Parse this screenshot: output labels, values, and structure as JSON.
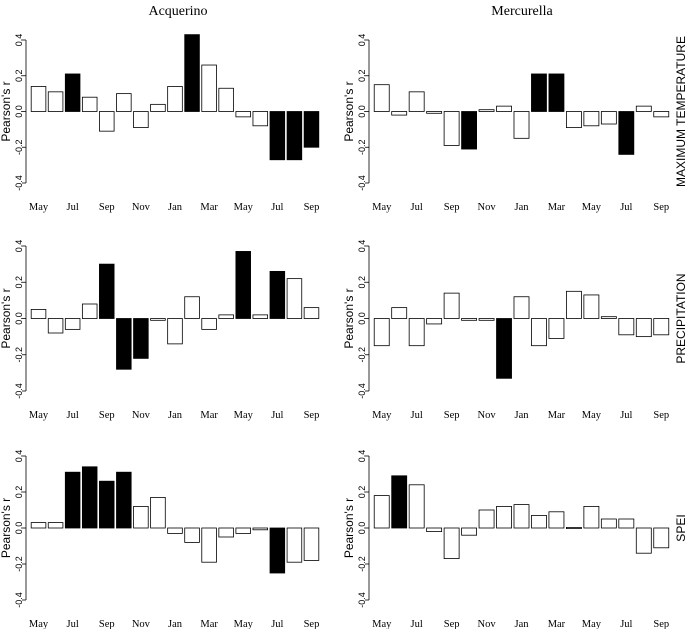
{
  "figure": {
    "columns": [
      "Acquerino",
      "Mercurella"
    ],
    "rows": [
      "MAXIMUM TEMPERATURE",
      "PRECIPITATION",
      "SPEI"
    ]
  },
  "chart_data": [
    {
      "type": "bar",
      "title": "Acquerino",
      "row": "MAXIMUM TEMPERATURE",
      "ylabel": "Pearson's r",
      "categories": [
        "May",
        "Jun",
        "Jul",
        "Aug",
        "Sep",
        "Oct",
        "Nov",
        "Dec",
        "Jan",
        "Feb",
        "Mar",
        "Apr",
        "May",
        "Jun",
        "Jul",
        "Aug",
        "Sep"
      ],
      "xtick_labels": [
        "May",
        "Jul",
        "Sep",
        "Nov",
        "Jan",
        "Mar",
        "May",
        "Jul",
        "Sep"
      ],
      "values": [
        0.14,
        0.11,
        0.21,
        0.08,
        -0.11,
        0.1,
        -0.09,
        0.04,
        0.14,
        0.43,
        0.26,
        0.13,
        -0.03,
        -0.08,
        -0.27,
        -0.27,
        -0.2
      ],
      "significant": [
        false,
        false,
        true,
        false,
        false,
        false,
        false,
        false,
        false,
        true,
        false,
        false,
        false,
        false,
        true,
        true,
        true
      ],
      "yticks": [
        "-0.4",
        "-0.2",
        "0.0",
        "0.2",
        "0.4"
      ],
      "ylim": [
        -0.4,
        0.4
      ]
    },
    {
      "type": "bar",
      "title": "Mercurella",
      "row": "MAXIMUM TEMPERATURE",
      "ylabel": "Pearson's r",
      "categories": [
        "May",
        "Jun",
        "Jul",
        "Aug",
        "Sep",
        "Oct",
        "Nov",
        "Dec",
        "Jan",
        "Feb",
        "Mar",
        "Apr",
        "May",
        "Jun",
        "Jul",
        "Aug",
        "Sep"
      ],
      "xtick_labels": [
        "May",
        "Jul",
        "Sep",
        "Nov",
        "Jan",
        "Mar",
        "May",
        "Jul",
        "Sep"
      ],
      "values": [
        0.15,
        -0.02,
        0.11,
        -0.01,
        -0.19,
        -0.21,
        0.01,
        0.03,
        -0.15,
        0.21,
        0.21,
        -0.09,
        -0.08,
        -0.07,
        -0.24,
        0.03,
        -0.03
      ],
      "significant": [
        false,
        false,
        false,
        false,
        false,
        true,
        false,
        false,
        false,
        true,
        true,
        false,
        false,
        false,
        true,
        false,
        false
      ],
      "yticks": [
        "-0.4",
        "-0.2",
        "0.0",
        "0.2",
        "0.4"
      ],
      "ylim": [
        -0.4,
        0.4
      ]
    },
    {
      "type": "bar",
      "title": "Acquerino",
      "row": "PRECIPITATION",
      "ylabel": "Pearson's r",
      "categories": [
        "May",
        "Jun",
        "Jul",
        "Aug",
        "Sep",
        "Oct",
        "Nov",
        "Dec",
        "Jan",
        "Feb",
        "Mar",
        "Apr",
        "May",
        "Jun",
        "Jul",
        "Aug",
        "Sep"
      ],
      "xtick_labels": [
        "May",
        "Jul",
        "Sep",
        "Nov",
        "Jan",
        "Mar",
        "May",
        "Jul",
        "Sep"
      ],
      "values": [
        0.05,
        -0.08,
        -0.06,
        0.08,
        0.3,
        -0.28,
        -0.22,
        -0.01,
        -0.14,
        0.12,
        -0.06,
        0.02,
        0.37,
        0.02,
        0.26,
        0.22,
        0.06
      ],
      "significant": [
        false,
        false,
        false,
        false,
        true,
        true,
        true,
        false,
        false,
        false,
        false,
        false,
        true,
        false,
        true,
        false,
        false
      ],
      "yticks": [
        "-0.4",
        "-0.2",
        "0.0",
        "0.2",
        "0.4"
      ],
      "ylim": [
        -0.4,
        0.4
      ]
    },
    {
      "type": "bar",
      "title": "Mercurella",
      "row": "PRECIPITATION",
      "ylabel": "Pearson's r",
      "categories": [
        "May",
        "Jun",
        "Jul",
        "Aug",
        "Sep",
        "Oct",
        "Nov",
        "Dec",
        "Jan",
        "Feb",
        "Mar",
        "Apr",
        "May",
        "Jun",
        "Jul",
        "Aug",
        "Sep"
      ],
      "xtick_labels": [
        "May",
        "Jul",
        "Sep",
        "Nov",
        "Jan",
        "Mar",
        "May",
        "Jul",
        "Sep"
      ],
      "values": [
        -0.15,
        0.06,
        -0.15,
        -0.03,
        0.14,
        -0.01,
        -0.01,
        -0.33,
        0.12,
        -0.15,
        -0.11,
        0.15,
        0.13,
        0.01,
        -0.09,
        -0.1,
        -0.09
      ],
      "significant": [
        false,
        false,
        false,
        false,
        false,
        false,
        false,
        true,
        false,
        false,
        false,
        false,
        false,
        false,
        false,
        false,
        false
      ],
      "yticks": [
        "-0.4",
        "-0.2",
        "0.0",
        "0.2",
        "0.4"
      ],
      "ylim": [
        -0.4,
        0.4
      ]
    },
    {
      "type": "bar",
      "title": "Acquerino",
      "row": "SPEI",
      "ylabel": "Pearson's r",
      "categories": [
        "May",
        "Jun",
        "Jul",
        "Aug",
        "Sep",
        "Oct",
        "Nov",
        "Dec",
        "Jan",
        "Feb",
        "Mar",
        "Apr",
        "May",
        "Jun",
        "Jul",
        "Aug",
        "Sep"
      ],
      "xtick_labels": [
        "May",
        "Jul",
        "Sep",
        "Nov",
        "Jan",
        "Mar",
        "May",
        "Jul",
        "Sep"
      ],
      "values": [
        0.03,
        0.03,
        0.31,
        0.34,
        0.26,
        0.31,
        0.12,
        0.17,
        -0.03,
        -0.08,
        -0.19,
        -0.05,
        -0.03,
        -0.01,
        -0.25,
        -0.19,
        -0.18
      ],
      "significant": [
        false,
        false,
        true,
        true,
        true,
        true,
        false,
        false,
        false,
        false,
        false,
        false,
        false,
        false,
        true,
        false,
        false
      ],
      "yticks": [
        "-0.4",
        "-0.2",
        "0.0",
        "0.2",
        "0.4"
      ],
      "ylim": [
        -0.4,
        0.4
      ]
    },
    {
      "type": "bar",
      "title": "Mercurella",
      "row": "SPEI",
      "ylabel": "Pearson's r",
      "categories": [
        "May",
        "Jun",
        "Jul",
        "Aug",
        "Sep",
        "Oct",
        "Nov",
        "Dec",
        "Jan",
        "Feb",
        "Mar",
        "Apr",
        "May",
        "Jun",
        "Jul",
        "Aug",
        "Sep"
      ],
      "xtick_labels": [
        "May",
        "Jul",
        "Sep",
        "Nov",
        "Jan",
        "Mar",
        "May",
        "Jul",
        "Sep"
      ],
      "values": [
        0.18,
        0.29,
        0.24,
        -0.02,
        -0.17,
        -0.04,
        0.1,
        0.12,
        0.13,
        0.07,
        0.09,
        0.0,
        0.12,
        0.05,
        0.05,
        -0.14,
        -0.11
      ],
      "significant": [
        false,
        true,
        false,
        false,
        false,
        false,
        false,
        false,
        false,
        false,
        false,
        false,
        false,
        false,
        false,
        false,
        false
      ],
      "yticks": [
        "-0.4",
        "-0.2",
        "0.0",
        "0.2",
        "0.4"
      ],
      "ylim": [
        -0.4,
        0.4
      ]
    }
  ]
}
